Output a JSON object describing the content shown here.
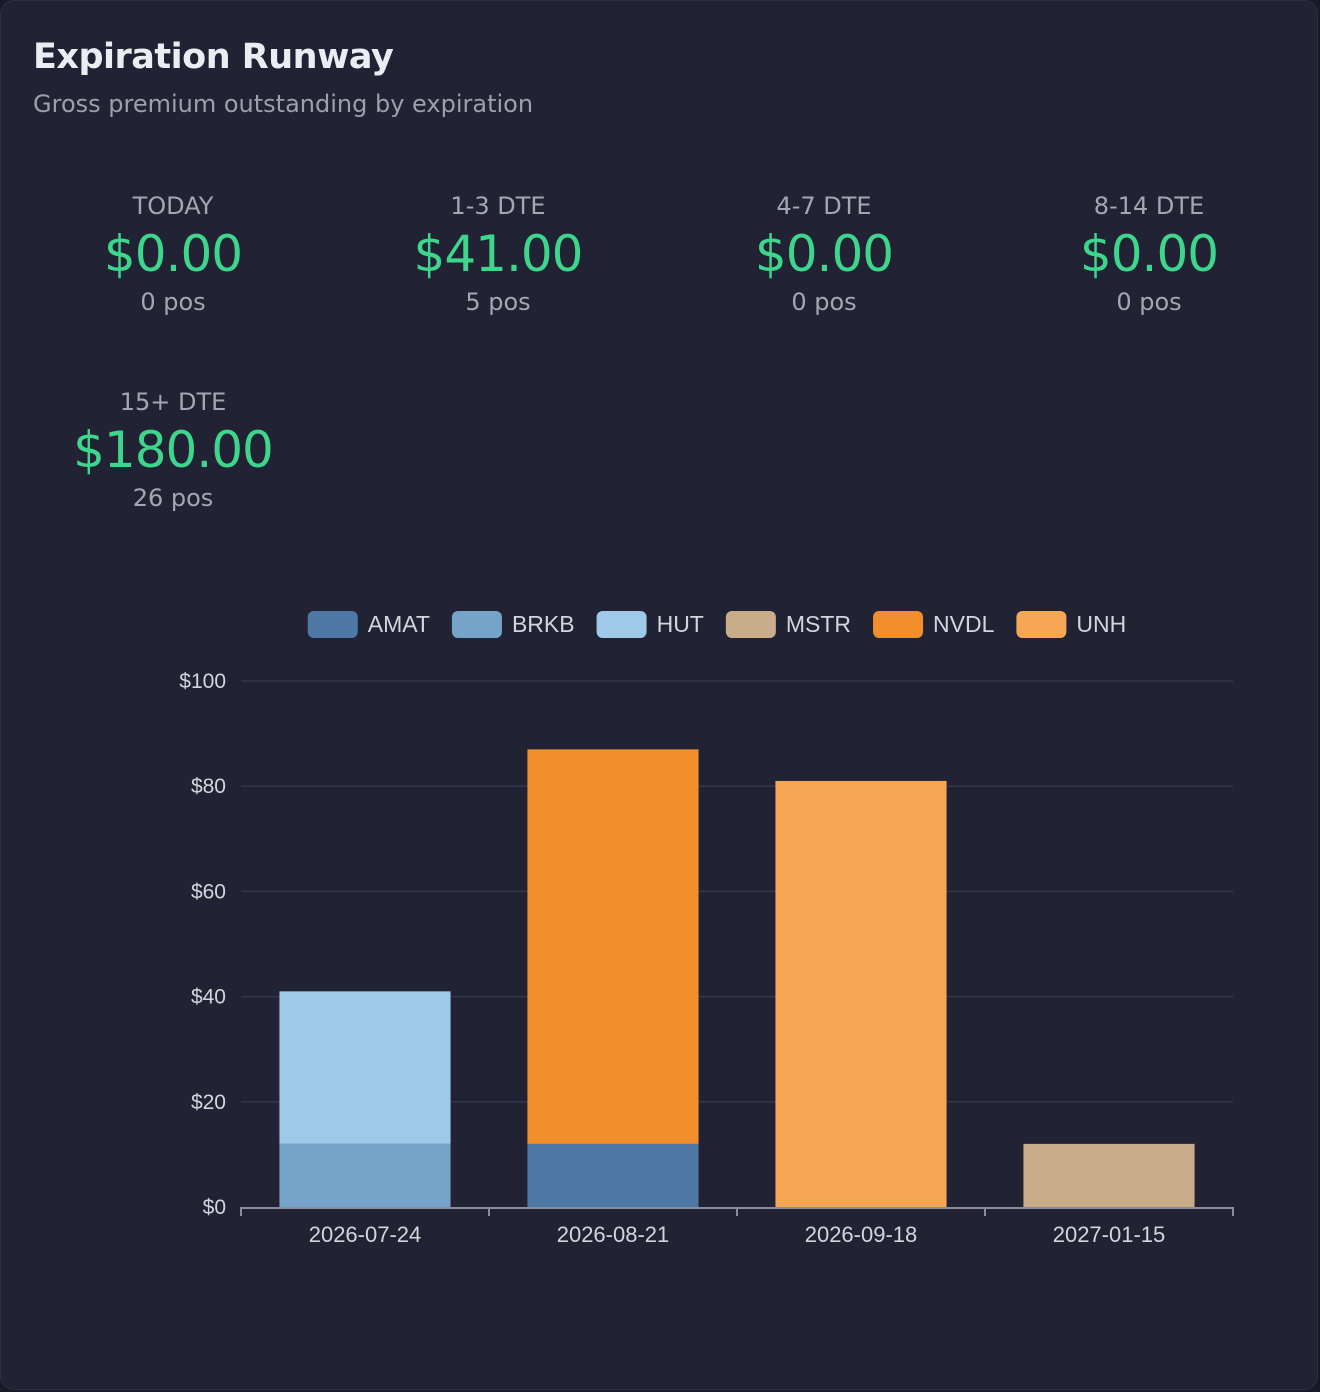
{
  "header": {
    "title": "Expiration Runway",
    "subtitle": "Gross premium outstanding by expiration"
  },
  "buckets": [
    {
      "label": "TODAY",
      "value": "$0.00",
      "count": "0 pos"
    },
    {
      "label": "1-3 DTE",
      "value": "$41.00",
      "count": "5 pos"
    },
    {
      "label": "4-7 DTE",
      "value": "$0.00",
      "count": "0 pos"
    },
    {
      "label": "8-14 DTE",
      "value": "$0.00",
      "count": "0 pos"
    },
    {
      "label": "15+ DTE",
      "value": "$180.00",
      "count": "26 pos"
    }
  ],
  "colors": {
    "value_green": "#3dd68c",
    "grid": "#34374a",
    "axis": "#8a8c99",
    "tick_text": "#d4d5dc"
  },
  "chart_data": {
    "type": "bar",
    "stacked": true,
    "categories": [
      "2026-07-24",
      "2026-08-21",
      "2026-09-18",
      "2027-01-15"
    ],
    "ylim": [
      0,
      100
    ],
    "yticks": [
      0,
      20,
      40,
      60,
      80,
      100
    ],
    "ytick_labels": [
      "$0",
      "$20",
      "$40",
      "$60",
      "$80",
      "$100"
    ],
    "legend_position": "top",
    "grid": true,
    "series": [
      {
        "name": "AMAT",
        "color": "#4e79a7",
        "values": [
          0,
          12,
          0,
          0
        ]
      },
      {
        "name": "BRKB",
        "color": "#76a4c9",
        "values": [
          12,
          0,
          0,
          0
        ]
      },
      {
        "name": "HUT",
        "color": "#9fc9e8",
        "values": [
          29,
          0,
          0,
          0
        ]
      },
      {
        "name": "MSTR",
        "color": "#c9ad8a",
        "values": [
          0,
          0,
          0,
          12
        ]
      },
      {
        "name": "NVDL",
        "color": "#f28e2c",
        "values": [
          0,
          75,
          0,
          0
        ]
      },
      {
        "name": "UNH",
        "color": "#f7a654",
        "values": [
          0,
          0,
          81,
          0
        ]
      }
    ]
  }
}
